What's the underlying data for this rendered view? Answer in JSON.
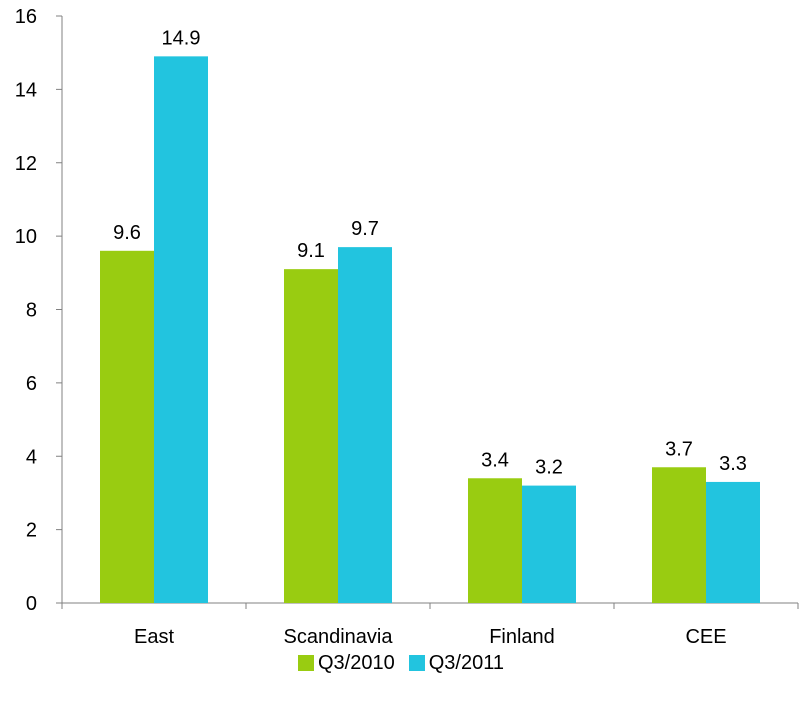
{
  "chart_data": {
    "type": "bar",
    "categories": [
      "East",
      "Scandinavia",
      "Finland",
      "CEE"
    ],
    "series": [
      {
        "name": "Q3/2010",
        "color": "#99CC11",
        "values": [
          9.6,
          9.1,
          3.4,
          3.7
        ]
      },
      {
        "name": "Q3/2011",
        "color": "#22C4DF",
        "values": [
          14.9,
          9.7,
          3.2,
          3.3
        ]
      }
    ],
    "yticks": [
      "0",
      "2",
      "4",
      "6",
      "8",
      "10",
      "12",
      "14",
      "16"
    ],
    "ylim": [
      0,
      16
    ],
    "legend": "bottom",
    "grid": false
  }
}
